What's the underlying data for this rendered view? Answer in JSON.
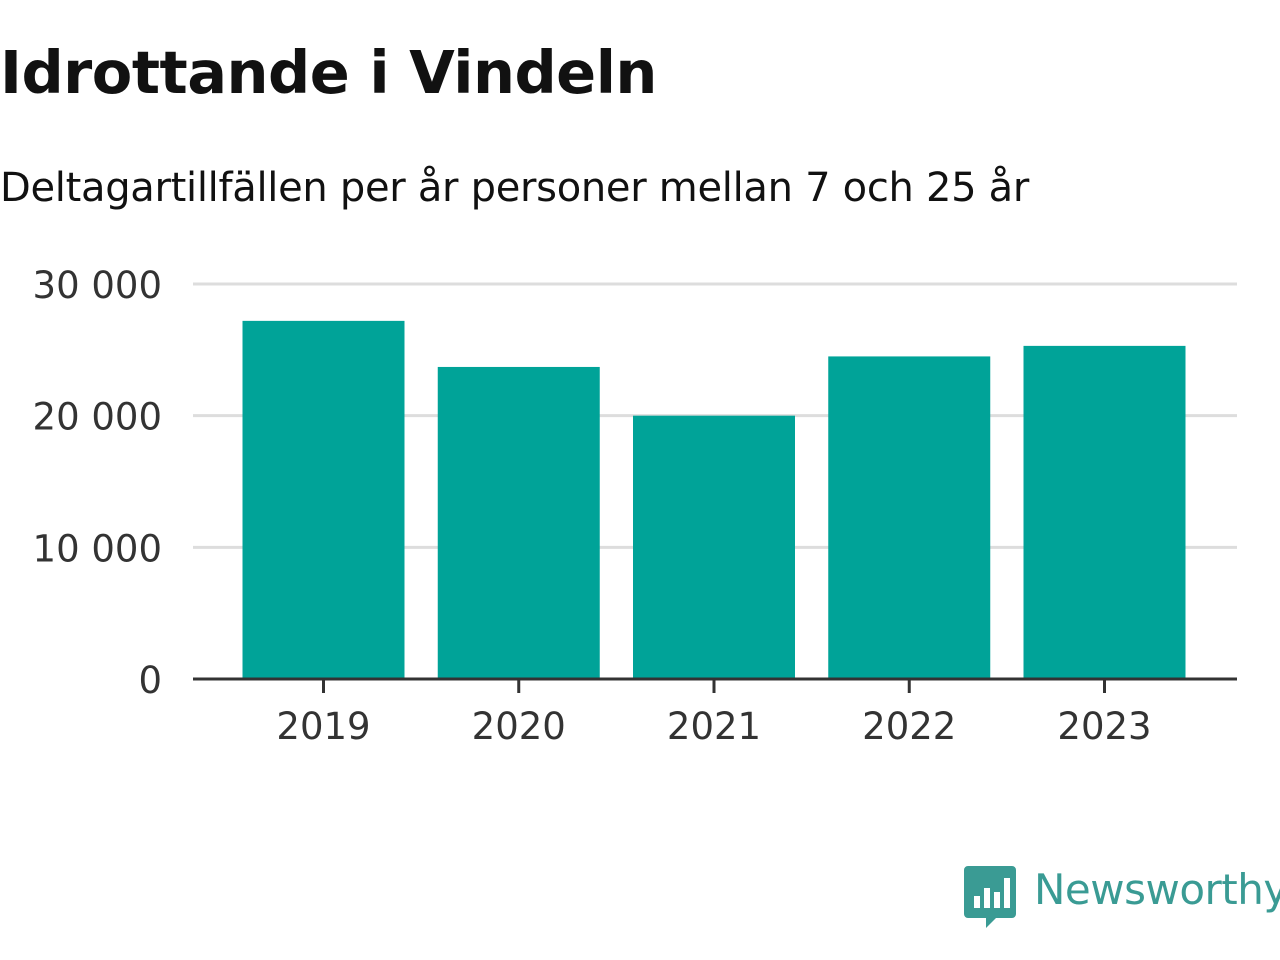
{
  "chart_data": {
    "type": "bar",
    "title": "Idrottande i Vindeln",
    "subtitle": "Deltagartillfällen per år personer mellan 7 och 25 år",
    "categories": [
      "2019",
      "2020",
      "2021",
      "2022",
      "2023"
    ],
    "values": [
      27200,
      23700,
      20000,
      24500,
      25300
    ],
    "ylim": [
      0,
      30000
    ],
    "yticks": [
      0,
      10000,
      20000,
      30000
    ],
    "ytick_labels": [
      "0",
      "10 000",
      "20 000",
      "30 000"
    ],
    "xlabel": "",
    "ylabel": "",
    "grid": true,
    "legend": "none"
  },
  "colors": {
    "bar": "#00a398",
    "grid": "#dddddd",
    "axis": "#333333",
    "brand": "#3a9b94"
  },
  "brand": {
    "name": "Newsworthy",
    "icon": "newsworthy-logo-icon"
  }
}
